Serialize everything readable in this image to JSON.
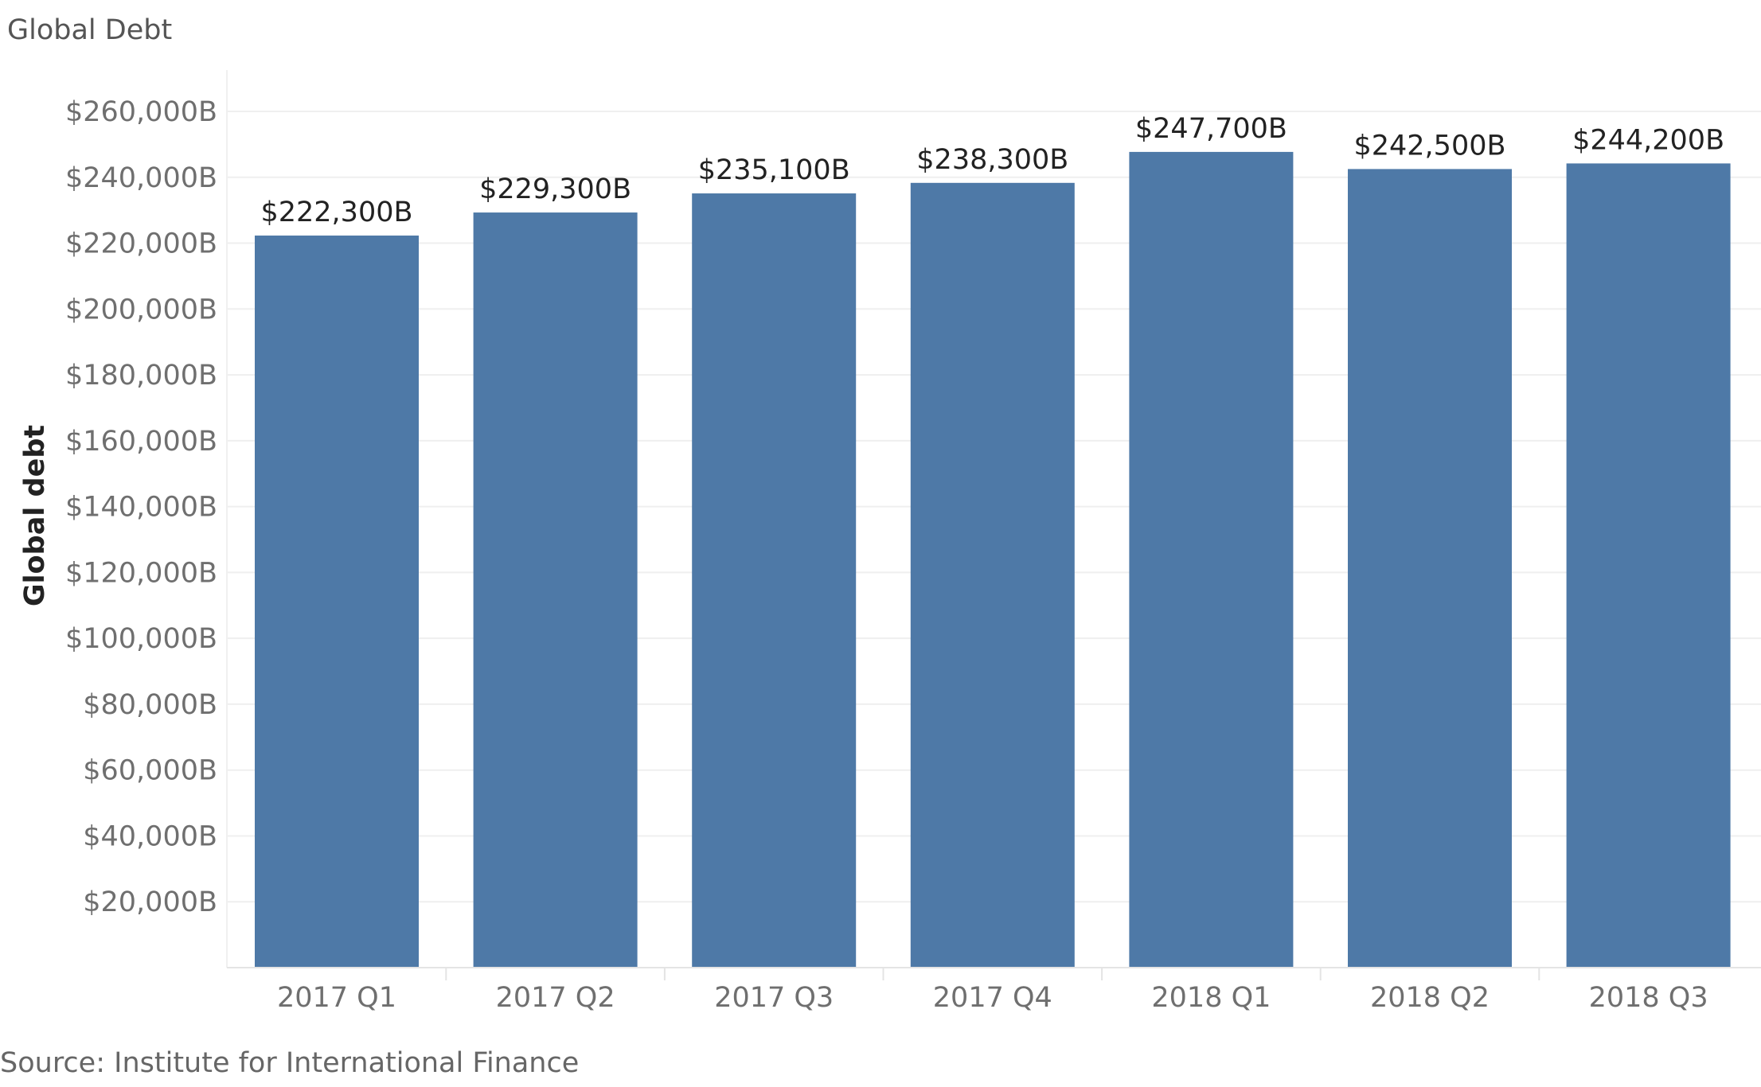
{
  "title": "Global Debt",
  "source": "Source: Institute for International Finance",
  "chart_data": {
    "type": "bar",
    "title": "Global Debt",
    "xlabel": "",
    "ylabel": "Global debt",
    "categories": [
      "2017 Q1",
      "2017 Q2",
      "2017 Q3",
      "2017 Q4",
      "2018 Q1",
      "2018 Q2",
      "2018 Q3"
    ],
    "values": [
      222300,
      229300,
      235100,
      238300,
      247700,
      242500,
      244200
    ],
    "data_labels": [
      "$222,300B",
      "$229,300B",
      "$235,100B",
      "$238,300B",
      "$247,700B",
      "$242,500B",
      "$244,200B"
    ],
    "ylim": [
      0,
      260000
    ],
    "yticks": [
      20000,
      40000,
      60000,
      80000,
      100000,
      120000,
      140000,
      160000,
      180000,
      200000,
      220000,
      240000,
      260000
    ],
    "ytick_labels": [
      "$20,000B",
      "$40,000B",
      "$60,000B",
      "$80,000B",
      "$100,000B",
      "$120,000B",
      "$140,000B",
      "$160,000B",
      "$180,000B",
      "$200,000B",
      "$220,000B",
      "$240,000B",
      "$260,000B"
    ],
    "grid": true,
    "legend": "none",
    "bar_color": "#4e79a7"
  }
}
